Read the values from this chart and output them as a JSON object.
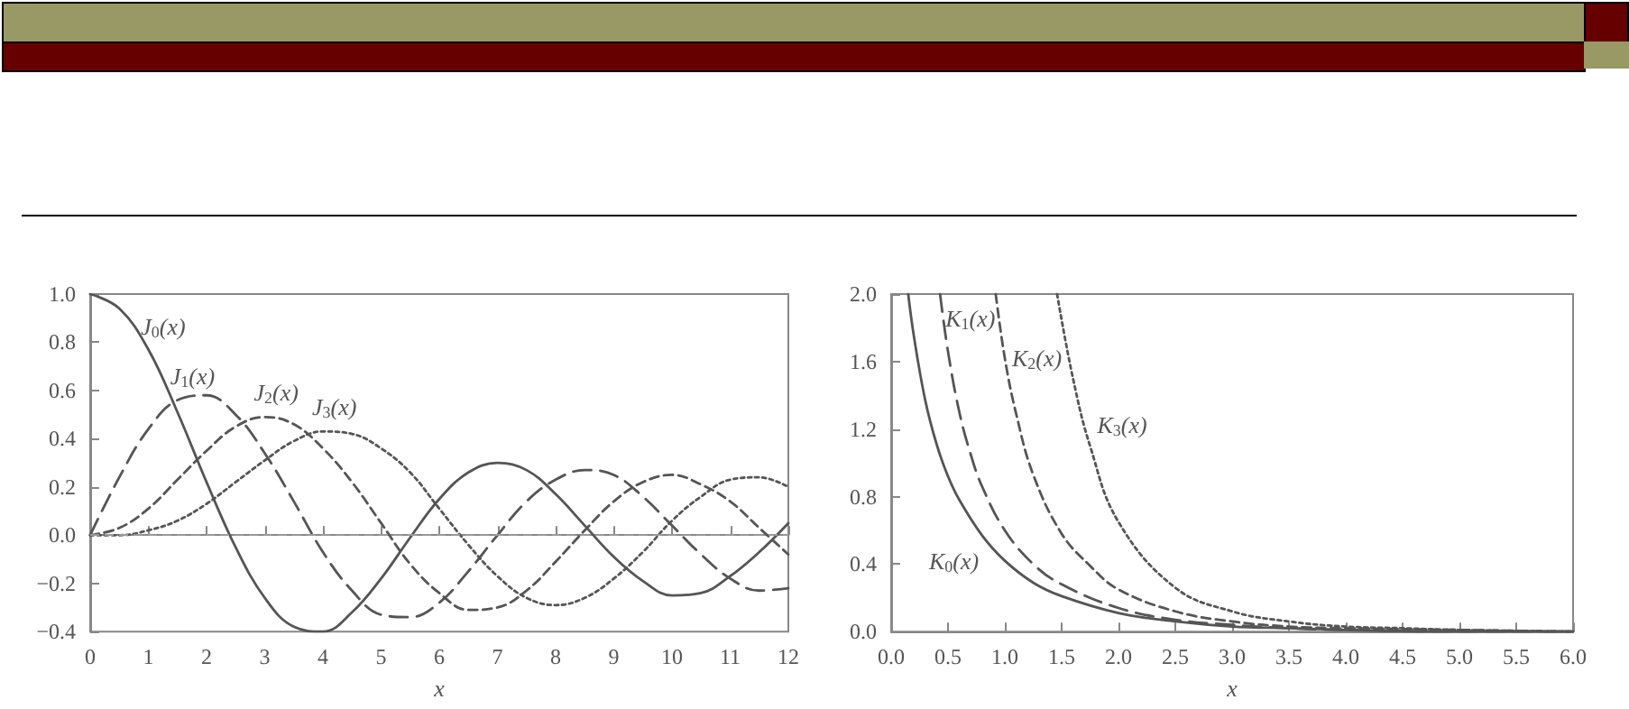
{
  "chart_data": [
    {
      "type": "line",
      "xlabel": "x",
      "xlim": [
        0,
        12
      ],
      "ylim": [
        -0.4,
        1.0
      ],
      "grid": false,
      "marker": "none",
      "xticks": [
        0,
        1,
        2,
        3,
        4,
        5,
        6,
        7,
        8,
        9,
        10,
        11,
        12
      ],
      "yticks": [
        {
          "value": -0.4,
          "label": "−0.4"
        },
        {
          "value": -0.2,
          "label": "−0.2"
        },
        {
          "value": 0,
          "label": "0.0"
        },
        {
          "value": 0.2,
          "label": "0.2"
        },
        {
          "value": 0.4,
          "label": "0.4"
        },
        {
          "value": 0.6,
          "label": "0.6"
        },
        {
          "value": 0.8,
          "label": "0.8"
        },
        {
          "value": 1.0,
          "label": "1.0"
        }
      ],
      "x": [
        0,
        0.5,
        1,
        1.5,
        2,
        2.5,
        3,
        3.5,
        4,
        4.5,
        5,
        5.5,
        6,
        6.5,
        7,
        7.5,
        8,
        8.5,
        9,
        9.5,
        10,
        10.5,
        11,
        11.5,
        12
      ],
      "series": [
        {
          "color": "#555555",
          "line_style": "solid",
          "values": [
            1,
            0.94,
            0.77,
            0.51,
            0.22,
            -0.05,
            -0.26,
            -0.38,
            -0.4,
            -0.32,
            -0.18,
            -0.01,
            0.15,
            0.26,
            0.3,
            0.27,
            0.17,
            0.04,
            -0.09,
            -0.19,
            -0.25,
            -0.24,
            -0.17,
            -0.07,
            0.05
          ]
        },
        {
          "color": "#555555",
          "line_style": "longdash",
          "values": [
            0,
            0.24,
            0.44,
            0.56,
            0.58,
            0.5,
            0.34,
            0.14,
            -0.07,
            -0.23,
            -0.33,
            -0.34,
            -0.28,
            -0.15,
            0.0,
            0.14,
            0.23,
            0.27,
            0.25,
            0.16,
            0.04,
            -0.08,
            -0.18,
            -0.23,
            -0.22
          ]
        },
        {
          "color": "#555555",
          "line_style": "dashed",
          "values": [
            0,
            0.03,
            0.11,
            0.23,
            0.35,
            0.45,
            0.49,
            0.46,
            0.36,
            0.22,
            0.05,
            -0.12,
            -0.24,
            -0.31,
            -0.3,
            -0.23,
            -0.11,
            0.02,
            0.14,
            0.22,
            0.25,
            0.21,
            0.14,
            0.03,
            -0.08
          ]
        },
        {
          "color": "#555555",
          "line_style": "dotted",
          "values": [
            0,
            0.0,
            0.02,
            0.06,
            0.13,
            0.22,
            0.31,
            0.39,
            0.43,
            0.42,
            0.36,
            0.26,
            0.11,
            -0.04,
            -0.17,
            -0.26,
            -0.29,
            -0.26,
            -0.18,
            -0.07,
            0.06,
            0.16,
            0.23,
            0.24,
            0.2
          ]
        }
      ],
      "ref_lines": [
        {
          "axis": "y",
          "value": 0,
          "color": "#999999",
          "line_style": "dashed"
        }
      ],
      "annotations": [
        {
          "text": "J$_{0}$(x)",
          "x": 0.5,
          "y": 0.94
        },
        {
          "text": "J$_{1}$(x)",
          "x": 1.5,
          "y": 0.56
        },
        {
          "text": "J$_{2}$(x)",
          "x": 3,
          "y": 0.49
        },
        {
          "text": "J$_{3}$(x)",
          "x": 4,
          "y": 0.43
        }
      ]
    },
    {
      "type": "line",
      "xlabel": "x",
      "xlim": [
        0,
        6
      ],
      "ylim": [
        0,
        2.0
      ],
      "grid": false,
      "marker": "none",
      "xticks": [
        {
          "value": 0,
          "label": "0.0"
        },
        {
          "value": 0.5,
          "label": "0.5"
        },
        {
          "value": 1,
          "label": "1.0"
        },
        {
          "value": 1.5,
          "label": "1.5"
        },
        {
          "value": 2,
          "label": "2.0"
        },
        {
          "value": 2.5,
          "label": "2.5"
        },
        {
          "value": 3,
          "label": "3.0"
        },
        {
          "value": 3.5,
          "label": "3.5"
        },
        {
          "value": 4,
          "label": "4.0"
        },
        {
          "value": 4.5,
          "label": "4.5"
        },
        {
          "value": 5,
          "label": "5.0"
        },
        {
          "value": 5.5,
          "label": "5.5"
        },
        {
          "value": 6,
          "label": "6.0"
        }
      ],
      "yticks": [
        {
          "value": 0,
          "label": "0.0"
        },
        {
          "value": 0.4,
          "label": "0.4"
        },
        {
          "value": 0.8,
          "label": "0.8"
        },
        {
          "value": 1.2,
          "label": "1.2"
        },
        {
          "value": 1.6,
          "label": "1.6"
        },
        {
          "value": 2.0,
          "label": "2.0"
        }
      ],
      "series": [
        {
          "color": "#555555",
          "line_style": "solid",
          "x": [
            0.15,
            0.2,
            0.3,
            0.4,
            0.5,
            0.6,
            0.8,
            1,
            1.25,
            1.5,
            2,
            2.5,
            3,
            3.5,
            4,
            5,
            6
          ],
          "values": [
            2.0,
            1.75,
            1.37,
            1.11,
            0.92,
            0.78,
            0.57,
            0.42,
            0.29,
            0.21,
            0.11,
            0.06,
            0.03,
            0.02,
            0.01,
            0.0,
            0.0
          ]
        },
        {
          "color": "#555555",
          "line_style": "longdash",
          "x": [
            0.43,
            0.5,
            0.6,
            0.7,
            0.8,
            1,
            1.25,
            1.5,
            2,
            2.5,
            3,
            3.5,
            4,
            5,
            6
          ],
          "values": [
            2.0,
            1.66,
            1.3,
            1.05,
            0.86,
            0.6,
            0.4,
            0.28,
            0.14,
            0.07,
            0.04,
            0.02,
            0.01,
            0.0,
            0.0
          ]
        },
        {
          "color": "#555555",
          "line_style": "dashed",
          "x": [
            0.92,
            1,
            1.1,
            1.25,
            1.5,
            1.75,
            2,
            2.5,
            3,
            3.5,
            4,
            5,
            6
          ],
          "values": [
            2.0,
            1.62,
            1.29,
            0.93,
            0.58,
            0.39,
            0.25,
            0.12,
            0.06,
            0.03,
            0.02,
            0.01,
            0.0
          ]
        },
        {
          "color": "#555555",
          "line_style": "dotted",
          "x": [
            1.46,
            1.6,
            1.75,
            2,
            2.5,
            3,
            3.5,
            4,
            4.5,
            5,
            6
          ],
          "values": [
            2.0,
            1.5,
            1.1,
            0.65,
            0.26,
            0.12,
            0.06,
            0.03,
            0.02,
            0.01,
            0.0
          ]
        }
      ],
      "annotations": [
        {
          "text": "K$_{1}$(x)",
          "x": 0.43,
          "y": 2.0
        },
        {
          "text": "K$_{2}$(x)",
          "x": 1,
          "y": 1.62
        },
        {
          "text": "K$_{3}$(x)",
          "x": 1.75,
          "y": 1.1
        },
        {
          "text": "K$_{0}$(x)",
          "x": 1,
          "y": 0.42
        }
      ]
    }
  ]
}
